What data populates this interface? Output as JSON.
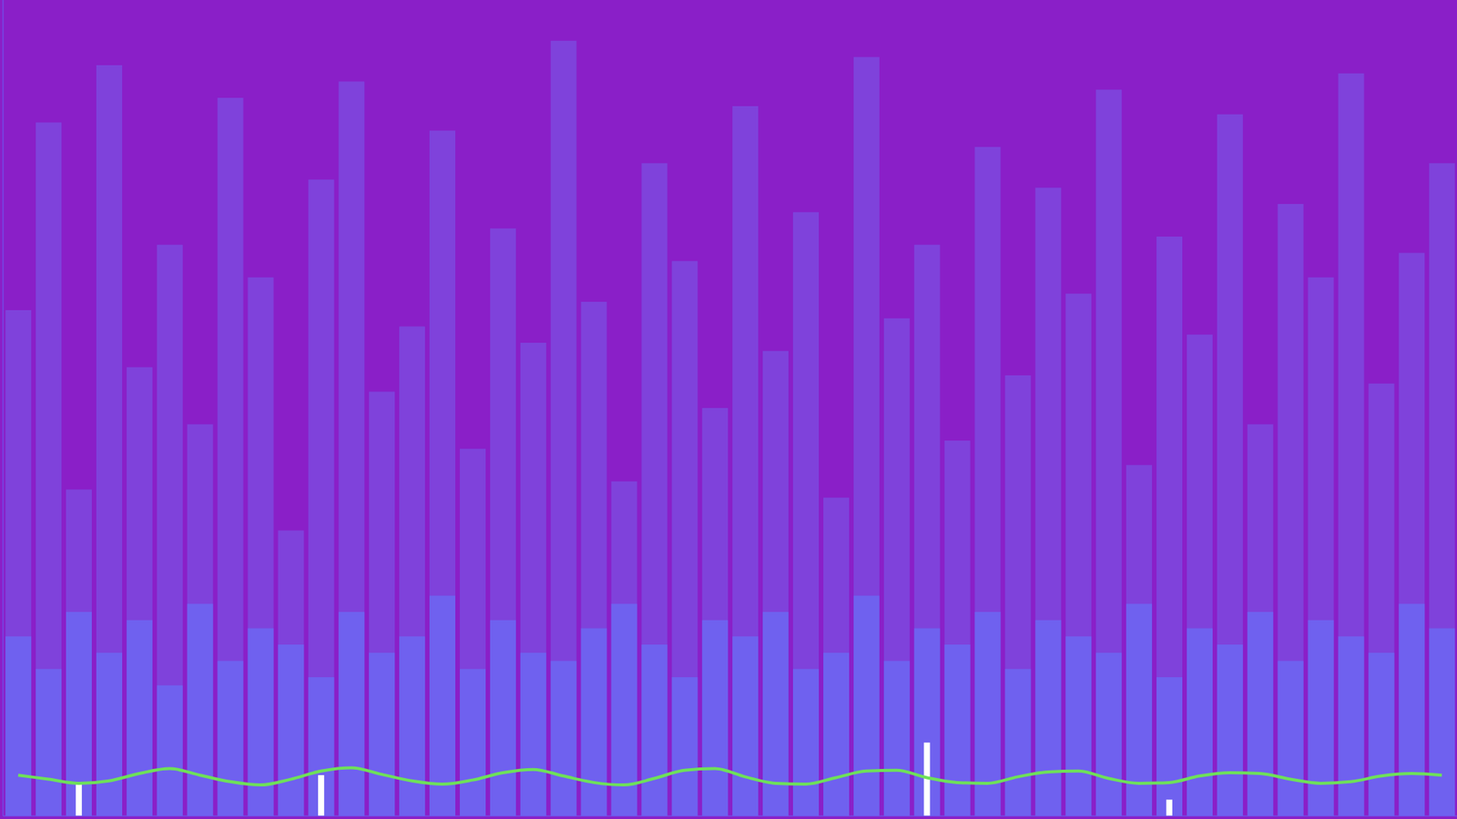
{
  "chart_data": {
    "type": "bar",
    "categories": [
      null,
      null,
      null,
      null,
      null,
      null,
      null,
      null,
      null,
      null,
      null,
      null,
      null,
      null,
      null,
      null,
      null,
      null,
      null,
      null,
      null,
      null,
      null,
      null,
      null,
      null,
      null,
      null,
      null,
      null,
      null,
      null,
      null,
      null,
      null,
      null,
      null,
      null,
      null,
      null,
      null,
      null,
      null,
      null,
      null,
      null,
      null,
      null
    ],
    "ylim": [
      0,
      100
    ],
    "yticks": [],
    "grid": false,
    "tick_labels": false,
    "series": [
      {
        "type": "bar",
        "color": "#7b4fe2",
        "values": [
          62,
          85,
          40,
          92,
          55,
          70,
          48,
          88,
          66,
          35,
          78,
          90,
          52,
          60,
          84,
          45,
          72,
          58,
          95,
          63,
          41,
          80,
          68,
          50,
          87,
          57,
          74,
          39,
          93,
          61,
          70,
          46,
          82,
          54,
          77,
          64,
          89,
          43,
          71,
          59,
          86,
          48,
          75,
          66,
          91,
          53,
          69,
          80
        ]
      },
      {
        "type": "bar",
        "color": "#6a6cf5",
        "values": [
          22,
          18,
          25,
          20,
          24,
          16,
          26,
          19,
          23,
          21,
          17,
          25,
          20,
          22,
          27,
          18,
          24,
          20,
          19,
          23,
          26,
          21,
          17,
          24,
          22,
          25,
          18,
          20,
          27,
          19,
          23,
          21,
          25,
          18,
          24,
          22,
          20,
          26,
          17,
          23,
          21,
          25,
          19,
          24,
          22,
          20,
          26,
          23
        ]
      },
      {
        "type": "bar",
        "color": "#ffffff",
        "values": [
          null,
          null,
          4,
          null,
          null,
          null,
          null,
          null,
          null,
          null,
          5,
          null,
          null,
          null,
          null,
          null,
          null,
          null,
          null,
          null,
          null,
          null,
          null,
          null,
          null,
          null,
          null,
          null,
          null,
          null,
          9,
          null,
          null,
          null,
          null,
          null,
          null,
          null,
          2,
          null,
          null,
          null,
          null,
          null,
          null,
          null,
          null,
          null
        ]
      },
      {
        "type": "line",
        "color": "#6ee05a",
        "values": [
          5,
          4.5,
          4,
          4.3,
          5.2,
          5.8,
          5,
          4.2,
          3.8,
          4.5,
          5.5,
          5.9,
          5.1,
          4.3,
          3.9,
          4.4,
          5.3,
          5.7,
          4.9,
          4.1,
          3.8,
          4.6,
          5.6,
          5.8,
          4.8,
          4.0,
          3.9,
          4.7,
          5.5,
          5.6,
          4.7,
          4.1,
          4.0,
          4.8,
          5.4,
          5.5,
          4.6,
          4.0,
          4.1,
          4.9,
          5.3,
          5.2,
          4.5,
          4.0,
          4.2,
          4.9,
          5.2,
          5.0
        ]
      }
    ]
  }
}
